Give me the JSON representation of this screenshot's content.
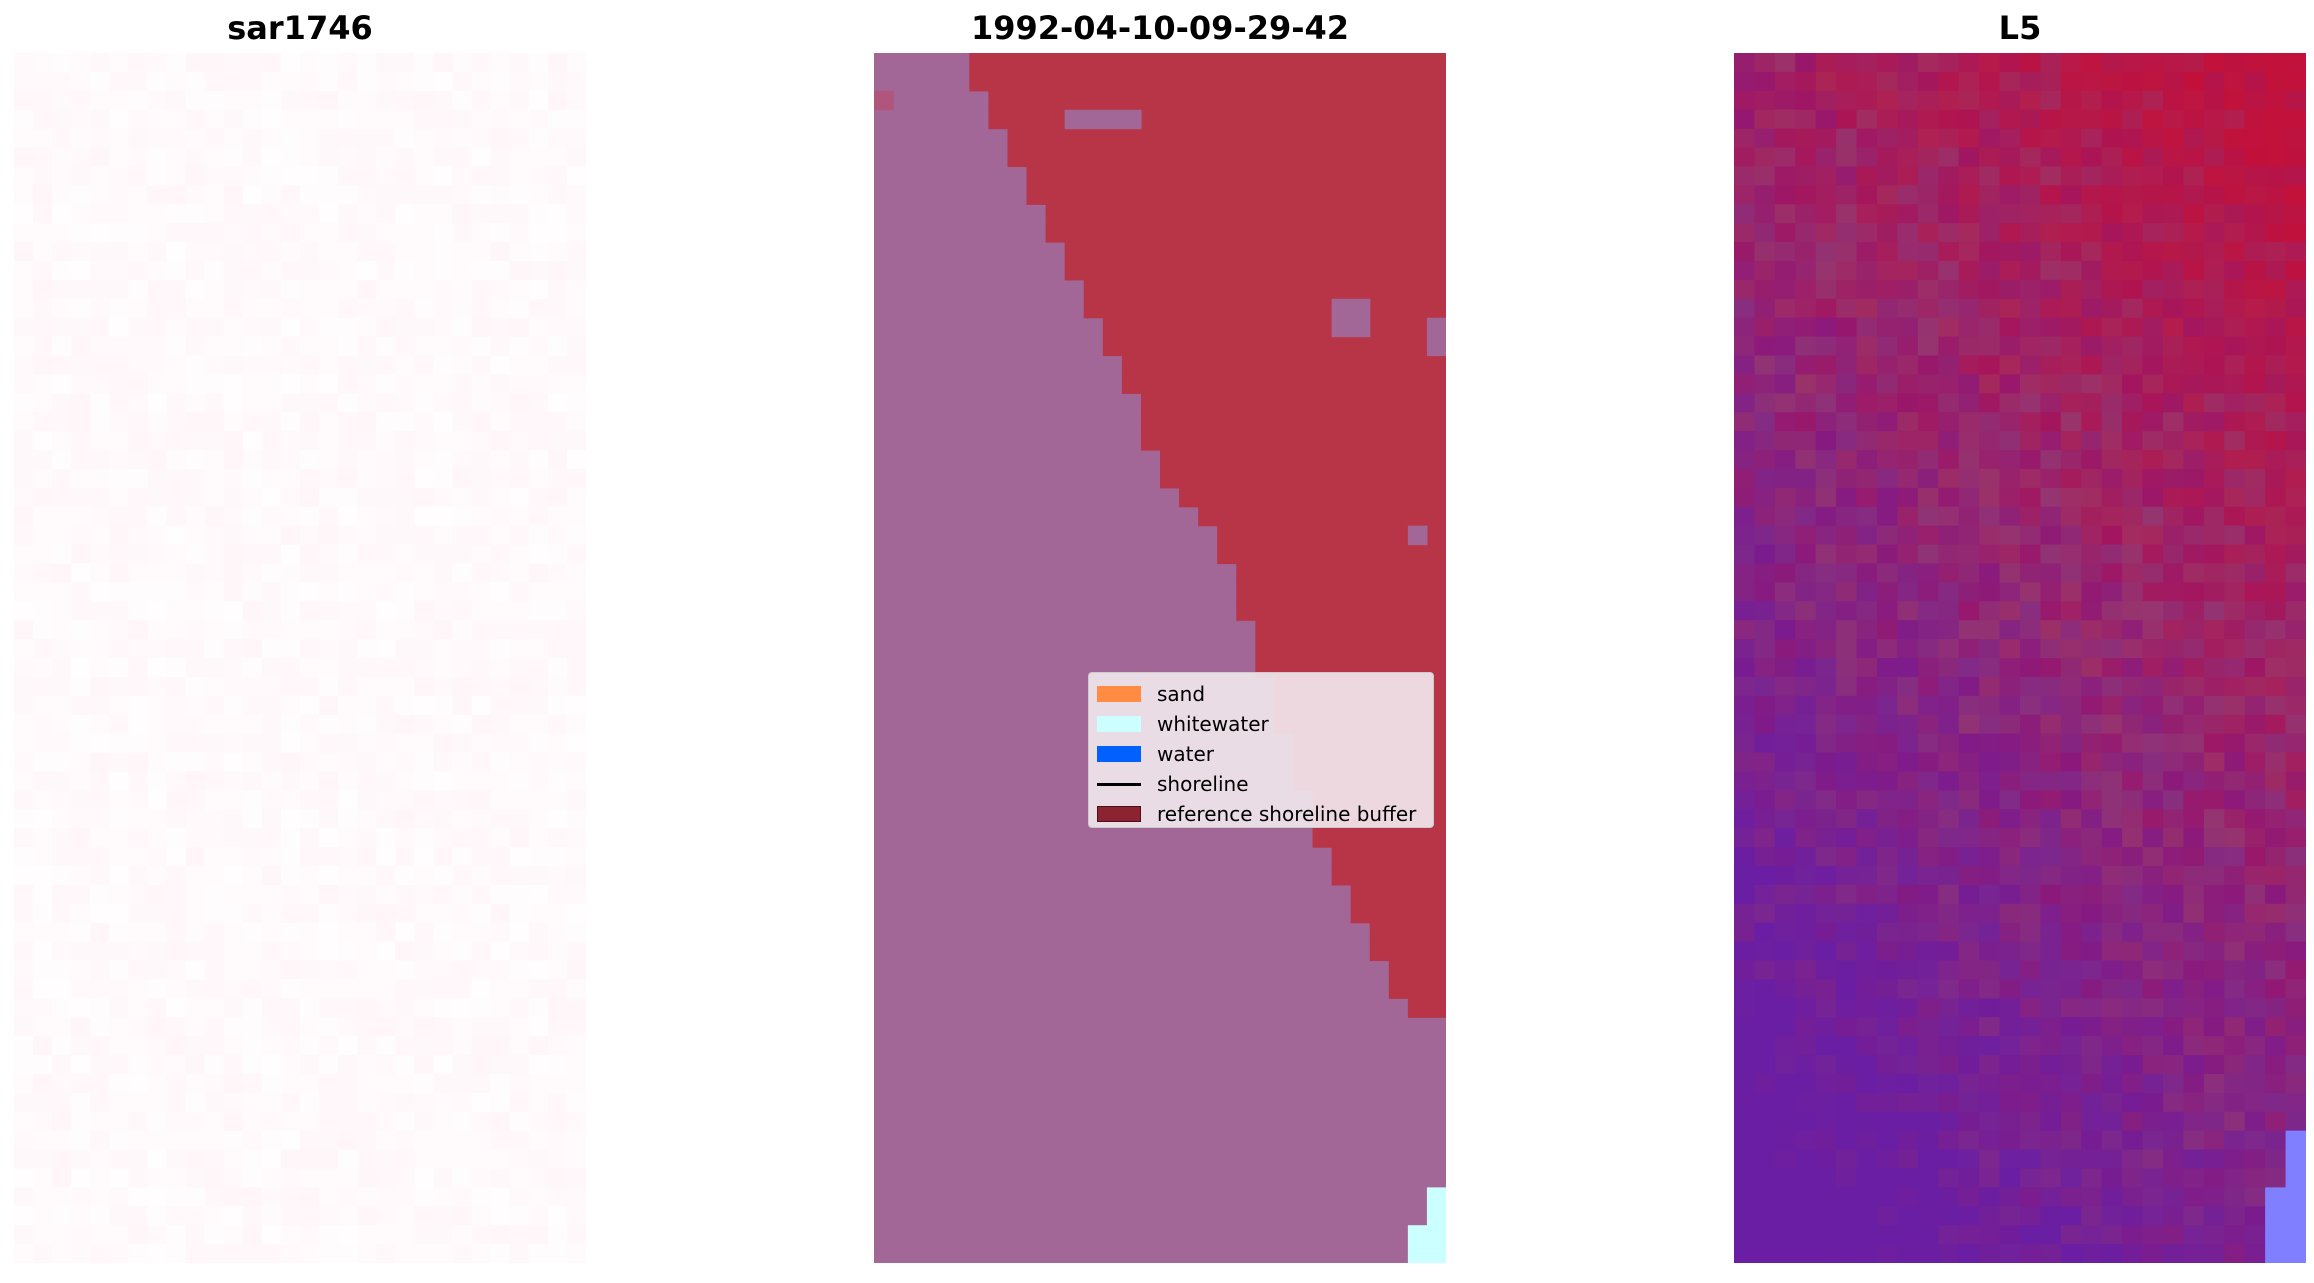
{
  "panels": [
    {
      "title": "sar1746"
    },
    {
      "title": "1992-04-10-09-29-42"
    },
    {
      "title": "L5"
    }
  ],
  "legend": {
    "items": [
      {
        "label": "sand",
        "color": "#ff8c42",
        "kind": "patch"
      },
      {
        "label": "whitewater",
        "color": "#ccffff",
        "kind": "patch"
      },
      {
        "label": "water",
        "color": "#0061ff",
        "kind": "patch"
      },
      {
        "label": "shoreline",
        "color": "#000000",
        "kind": "line"
      },
      {
        "label": "reference shoreline buffer",
        "color": "#8b2331",
        "kind": "patch"
      }
    ]
  },
  "colors": {
    "background_land": "#a36797",
    "buffer_red": "#b73546",
    "whitewater": "#ccffff",
    "sar_tint": "#fff7fb",
    "l5_purple": "#6a1ea3",
    "l5_red": "#c2113a",
    "l5_blue": "#7f7fff"
  }
}
